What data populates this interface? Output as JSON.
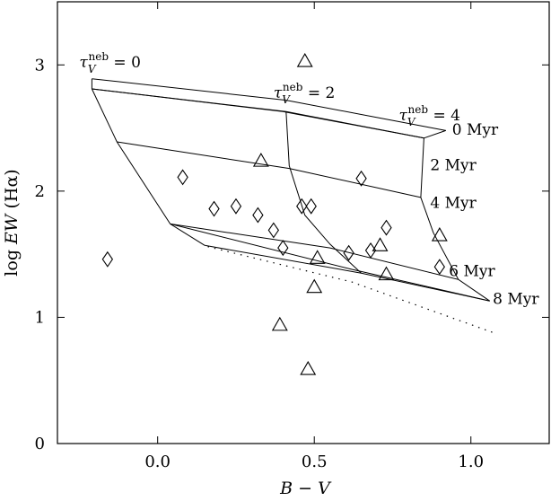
{
  "chart_data": {
    "type": "scatter",
    "title": "",
    "xlabel": {
      "pre": "",
      "var": "B",
      "mid": " − ",
      "var2": "V",
      "post": ""
    },
    "ylabel": {
      "pre": "log ",
      "var": "EW",
      "post": " (Hα)"
    },
    "xlim": [
      -0.32,
      1.25
    ],
    "ylim": [
      0,
      3.5
    ],
    "grid": false,
    "xticks": [
      {
        "value": 0.0,
        "label": "0.0"
      },
      {
        "value": 0.5,
        "label": "0.5"
      },
      {
        "value": 1.0,
        "label": "1.0"
      }
    ],
    "yticks": [
      {
        "value": 0,
        "label": "0"
      },
      {
        "value": 1,
        "label": "1"
      },
      {
        "value": 2,
        "label": "2"
      },
      {
        "value": 3,
        "label": "3"
      }
    ],
    "series": [
      {
        "marker": "diamond",
        "points": [
          {
            "x": -0.16,
            "y": 1.46
          },
          {
            "x": 0.08,
            "y": 2.11
          },
          {
            "x": 0.18,
            "y": 1.86
          },
          {
            "x": 0.25,
            "y": 1.88
          },
          {
            "x": 0.32,
            "y": 1.81
          },
          {
            "x": 0.37,
            "y": 1.69
          },
          {
            "x": 0.4,
            "y": 1.55
          },
          {
            "x": 0.46,
            "y": 1.88
          },
          {
            "x": 0.49,
            "y": 1.88
          },
          {
            "x": 0.61,
            "y": 1.51
          },
          {
            "x": 0.65,
            "y": 2.1
          },
          {
            "x": 0.68,
            "y": 1.53
          },
          {
            "x": 0.73,
            "y": 1.71
          },
          {
            "x": 0.9,
            "y": 1.4
          }
        ]
      },
      {
        "marker": "triangle",
        "points": [
          {
            "x": 0.33,
            "y": 2.24
          },
          {
            "x": 0.39,
            "y": 0.94
          },
          {
            "x": 0.47,
            "y": 3.03
          },
          {
            "x": 0.48,
            "y": 0.59
          },
          {
            "x": 0.5,
            "y": 1.24
          },
          {
            "x": 0.51,
            "y": 1.47
          },
          {
            "x": 0.71,
            "y": 1.57
          },
          {
            "x": 0.73,
            "y": 1.34
          },
          {
            "x": 0.9,
            "y": 1.65
          }
        ]
      }
    ],
    "model_grid": {
      "front_top_edge": [
        [
          -0.21,
          2.81
        ],
        [
          0.4,
          2.63
        ],
        [
          0.85,
          2.42
        ]
      ],
      "front_upper_edge": [
        [
          -0.21,
          2.89
        ],
        [
          0.41,
          2.72
        ],
        [
          0.92,
          2.48
        ]
      ],
      "tau0_track": [
        [
          -0.21,
          2.81
        ],
        [
          -0.13,
          2.39
        ],
        [
          0.04,
          1.74
        ],
        [
          0.15,
          1.57
        ]
      ],
      "tau2_track": [
        [
          0.41,
          2.63
        ],
        [
          0.42,
          2.2
        ],
        [
          0.47,
          1.81
        ],
        [
          0.55,
          1.58
        ],
        [
          0.65,
          1.35
        ]
      ],
      "tau4_track": [
        [
          0.85,
          2.42
        ],
        [
          0.84,
          1.95
        ],
        [
          0.88,
          1.67
        ],
        [
          0.96,
          1.3
        ],
        [
          1.06,
          1.13
        ]
      ],
      "isochrones": [
        {
          "label": "0 Myr",
          "points": [
            [
              -0.21,
              2.81
            ],
            [
              0.41,
              2.63
            ],
            [
              0.85,
              2.42
            ]
          ]
        },
        {
          "label": "2 Myr",
          "points": [
            [
              -0.13,
              2.39
            ],
            [
              0.42,
              2.18
            ],
            [
              0.84,
              1.95
            ]
          ]
        },
        {
          "label": "4 Myr",
          "points": [
            [
              0.04,
              1.74
            ],
            [
              0.55,
              1.55
            ],
            [
              0.96,
              1.3
            ]
          ]
        },
        {
          "label": "6 Myr",
          "points": [
            [
              0.15,
              1.57
            ],
            [
              0.65,
              1.35
            ],
            [
              1.06,
              1.13
            ]
          ]
        }
      ],
      "dotted_lower": [
        [
          0.16,
          1.56
        ],
        [
          0.62,
          1.28
        ],
        [
          1.07,
          0.88
        ]
      ],
      "tau_labels": [
        {
          "label_prefix": "τ",
          "sub": "V",
          "sup": "neb",
          "label_suffix": " = 0",
          "x": -0.25,
          "y": 2.98
        },
        {
          "label_prefix": "τ",
          "sub": "V",
          "sup": "neb",
          "label_suffix": " = 2",
          "x": 0.37,
          "y": 2.74
        },
        {
          "label_prefix": "τ",
          "sub": "V",
          "sup": "neb",
          "label_suffix": " = 4",
          "x": 0.77,
          "y": 2.56
        }
      ],
      "age_labels": [
        {
          "text": "0 Myr",
          "x": 0.94,
          "y": 2.49
        },
        {
          "text": "2 Myr",
          "x": 0.87,
          "y": 2.21
        },
        {
          "text": "4 Myr",
          "x": 0.87,
          "y": 1.91
        },
        {
          "text": "6 Myr",
          "x": 0.93,
          "y": 1.37
        },
        {
          "text": "8 Myr",
          "x": 1.07,
          "y": 1.15
        }
      ]
    }
  }
}
